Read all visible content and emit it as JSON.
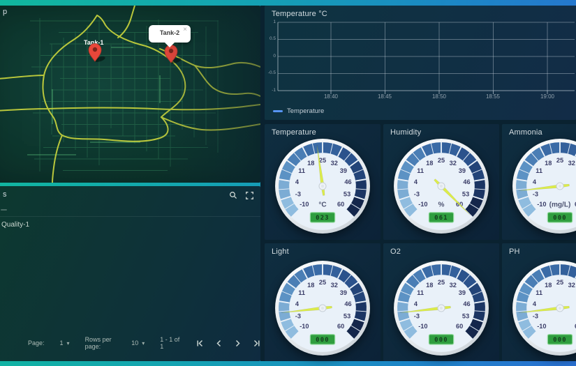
{
  "map_panel": {
    "title": "p",
    "markers": [
      {
        "label": "Tank-1"
      },
      {
        "label": "Tank-2"
      }
    ],
    "tooltip": {
      "text": "Tank-2",
      "close_icon": "×"
    }
  },
  "chart_data": [
    {
      "type": "line",
      "title": "Temperature °C",
      "series": [
        {
          "name": "Temperature",
          "color": "#5794f2",
          "x": [],
          "y": []
        }
      ],
      "x_ticks": [
        "18:40",
        "18:45",
        "18:50",
        "18:55",
        "19:00"
      ],
      "y_ticks": [
        "1",
        "0.5",
        "0",
        "-0.5",
        "-1"
      ],
      "grid": true,
      "legend_position": "bottom-left"
    },
    {
      "type": "gauge",
      "title": "Temperature",
      "unit": "°C",
      "value": 23,
      "display": "023",
      "min": -10,
      "max": 60
    },
    {
      "type": "gauge",
      "title": "Humidity",
      "unit": "%",
      "value": 61,
      "display": "061",
      "min": -10,
      "max": 60
    },
    {
      "type": "gauge",
      "title": "Ammonia",
      "unit": "(mg/L)",
      "value": 0,
      "display": "000",
      "min": -10,
      "max": 60
    },
    {
      "type": "gauge",
      "title": "Light",
      "unit": "",
      "value": 0,
      "display": "000",
      "min": -10,
      "max": 60
    },
    {
      "type": "gauge",
      "title": "O2",
      "unit": "",
      "value": 0,
      "display": "000",
      "min": -10,
      "max": 60
    },
    {
      "type": "gauge",
      "title": "PH",
      "unit": "",
      "value": 0,
      "display": "000",
      "min": -10,
      "max": 60
    }
  ],
  "gauge_style": {
    "tick_labels": [
      "-10",
      "-3",
      "4",
      "11",
      "18",
      "25",
      "32",
      "39",
      "46",
      "53",
      "60"
    ],
    "ring_colors": [
      "#8fbcdf",
      "#7cacd4",
      "#5c92c4",
      "#4a7eb5",
      "#3a6ba6",
      "#33609b",
      "#2b528c",
      "#234478",
      "#1b3563",
      "#14264b"
    ],
    "needle_color": "#dcec4a",
    "face_color": "#e9f1f9",
    "label_color": "#3a3d68",
    "unit_color": "#4c5270",
    "value_bg": "#2f9e3f",
    "value_border": "#8fd99a",
    "value_text_color": "#143c1d"
  },
  "table_panel": {
    "title": "s",
    "rows": [
      {
        "name": "Quality-1"
      }
    ],
    "pagination": {
      "page_label": "Page:",
      "page_value": "1",
      "rows_label": "Rows per page:",
      "rows_value": "10",
      "range_text": "1 - 1 of 1"
    },
    "caret_icon": "▾"
  },
  "colors": {
    "accent_teal": "#12b7a0",
    "accent_blue": "#2a70d2",
    "legend_blue": "#5794f2"
  }
}
